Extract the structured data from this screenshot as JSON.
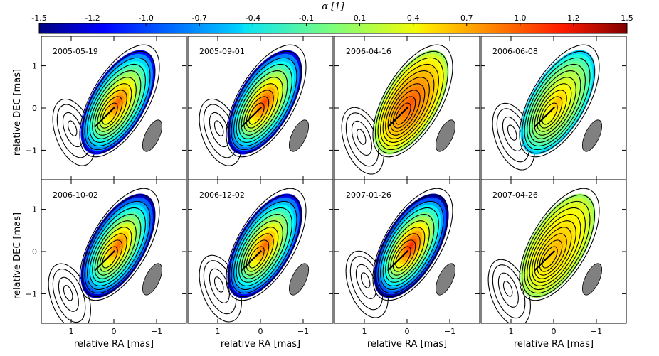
{
  "chart_data": {
    "type": "contour_map",
    "colorbar": {
      "label": "α [1]",
      "ticks": [
        "-1.5",
        "-1.2",
        "-1.0",
        "-0.7",
        "-0.4",
        "-0.1",
        "0.1",
        "0.4",
        "0.7",
        "1.0",
        "1.2",
        "1.5"
      ],
      "range": [
        -1.5,
        1.5
      ],
      "colormap": "jet"
    },
    "xlabel": "relative RA [mas]",
    "ylabel": "relative DEC [mas]",
    "xlim": [
      1.7,
      -1.7
    ],
    "ylim": [
      -1.7,
      1.7
    ],
    "xticks": [
      "1",
      "0",
      "−1"
    ],
    "yticks": [
      "1",
      "0",
      "−1"
    ],
    "panels": [
      {
        "date": "2005-05-19",
        "core_alpha": 0.9,
        "edge_alpha": -1.1,
        "outer_blob": [
          1.0,
          -0.6
        ]
      },
      {
        "date": "2005-09-01",
        "core_alpha": 1.0,
        "edge_alpha": -1.2,
        "outer_blob": [
          1.0,
          -0.6
        ]
      },
      {
        "date": "2006-04-16",
        "core_alpha": 0.9,
        "edge_alpha": 0.1,
        "outer_blob": [
          1.1,
          -0.8
        ]
      },
      {
        "date": "2006-06-08",
        "core_alpha": 0.6,
        "edge_alpha": -0.5,
        "outer_blob": [
          1.0,
          -0.7
        ]
      },
      {
        "date": "2006-10-02",
        "core_alpha": 0.9,
        "edge_alpha": -1.3,
        "outer_blob": [
          1.1,
          -1.1
        ]
      },
      {
        "date": "2006-12-02",
        "core_alpha": 0.9,
        "edge_alpha": -1.2,
        "outer_blob": [
          1.0,
          -0.9
        ]
      },
      {
        "date": "2007-01-26",
        "core_alpha": 1.1,
        "edge_alpha": -1.4,
        "outer_blob": [
          1.0,
          -0.8
        ]
      },
      {
        "date": "2007-04-26",
        "core_alpha": 0.6,
        "edge_alpha": 0.1,
        "outer_blob": [
          1.1,
          -1.0
        ]
      }
    ]
  }
}
